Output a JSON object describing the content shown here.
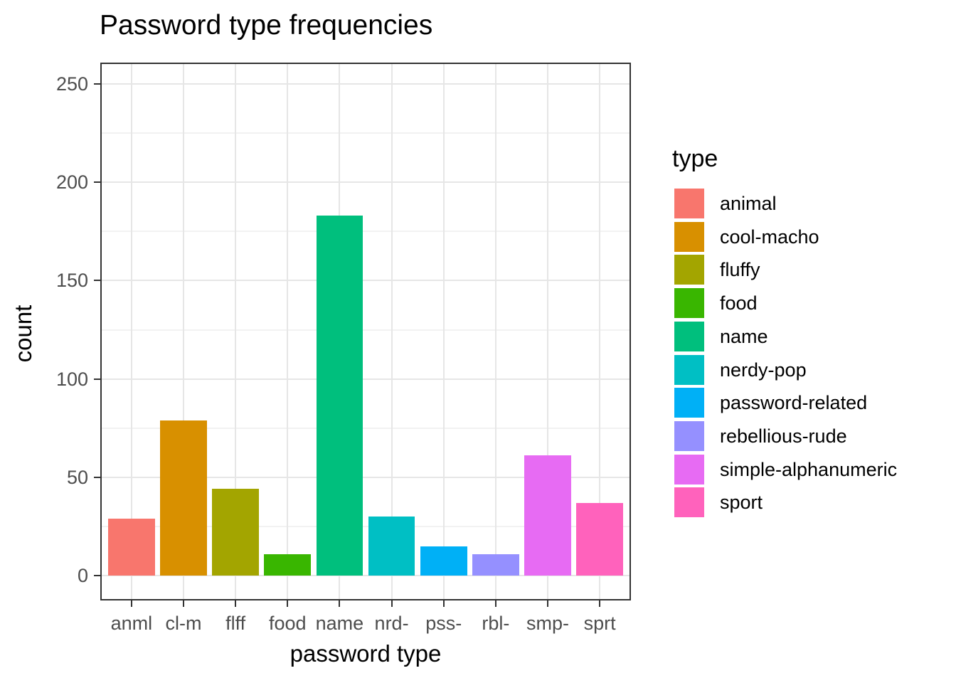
{
  "page": {
    "title": "Password type frequencies"
  },
  "chart_data": {
    "type": "bar",
    "title": "Password type frequencies",
    "xlabel": "password type",
    "ylabel": "count",
    "legend_title": "type",
    "legend_position": "right",
    "grid": true,
    "categories": [
      "anml",
      "cl-m",
      "flff",
      "food",
      "name",
      "nrd-",
      "pss-",
      "rbl-",
      "smp-",
      "sprt"
    ],
    "values": [
      29,
      79,
      44,
      11,
      183,
      30,
      15,
      11,
      61,
      37
    ],
    "items": [
      {
        "tick": "anml",
        "label": "animal",
        "value": 29,
        "color": "#F8766D"
      },
      {
        "tick": "cl-m",
        "label": "cool-macho",
        "value": 79,
        "color": "#D89000"
      },
      {
        "tick": "flff",
        "label": "fluffy",
        "value": 44,
        "color": "#A3A500"
      },
      {
        "tick": "food",
        "label": "food",
        "value": 11,
        "color": "#39B600"
      },
      {
        "tick": "name",
        "label": "name",
        "value": 183,
        "color": "#00BF7D"
      },
      {
        "tick": "nrd-",
        "label": "nerdy-pop",
        "value": 30,
        "color": "#00BFC4"
      },
      {
        "tick": "pss-",
        "label": "password-related",
        "value": 15,
        "color": "#00B0F6"
      },
      {
        "tick": "rbl-",
        "label": "rebellious-rude",
        "value": 11,
        "color": "#9590FF"
      },
      {
        "tick": "smp-",
        "label": "simple-alphanumeric",
        "value": 61,
        "color": "#E76BF3"
      },
      {
        "tick": "sprt",
        "label": "sport",
        "value": 37,
        "color": "#FF62BC"
      }
    ],
    "y_ticks": [
      0,
      50,
      100,
      150,
      200,
      250
    ],
    "y_minor_ticks": [
      25,
      75,
      125,
      175,
      225
    ],
    "ylim": [
      0,
      260
    ]
  },
  "colors": {
    "panel_border": "#333333",
    "grid_major": "#E6E6E6",
    "grid_minor": "#F2F2F2",
    "tick_label": "#4D4D4D",
    "text": "#000000",
    "background": "#FFFFFF"
  }
}
